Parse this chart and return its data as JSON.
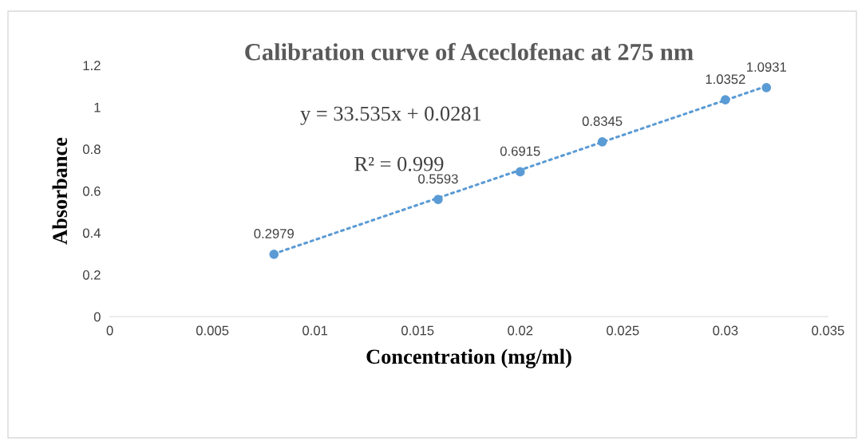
{
  "chart_data": {
    "type": "scatter",
    "title": "Calibration curve of Aceclofenac at 275 nm",
    "xlabel": "Concentration (mg/ml)",
    "ylabel": "Absorbance",
    "annotations": [
      "y = 33.535x + 0.0281",
      "R² = 0.999"
    ],
    "series": [
      {
        "color": "#5b9bd5",
        "marker": "circle",
        "x": [
          0.008,
          0.016,
          0.02,
          0.024,
          0.03,
          0.032
        ],
        "values": [
          0.2979,
          0.5593,
          0.6915,
          0.8345,
          1.0352,
          1.0931
        ],
        "value_labels": [
          "0.2979",
          "0.5593",
          "0.6915",
          "0.8345",
          "1.0352",
          "1.0931"
        ]
      },
      {
        "type": "line",
        "color": "#5b9bd5",
        "line_style": "dotted",
        "x": [
          0.008,
          0.032
        ],
        "values": [
          0.3,
          1.1
        ]
      }
    ],
    "xlim": [
      0,
      0.035
    ],
    "xticks": [
      0,
      0.005,
      0.01,
      0.015,
      0.02,
      0.025,
      0.03,
      0.035
    ],
    "ylim": [
      0,
      1.2
    ],
    "yticks": [
      0,
      0.2,
      0.4,
      0.6,
      0.8,
      1,
      1.2
    ],
    "grid": false,
    "legend": false
  }
}
